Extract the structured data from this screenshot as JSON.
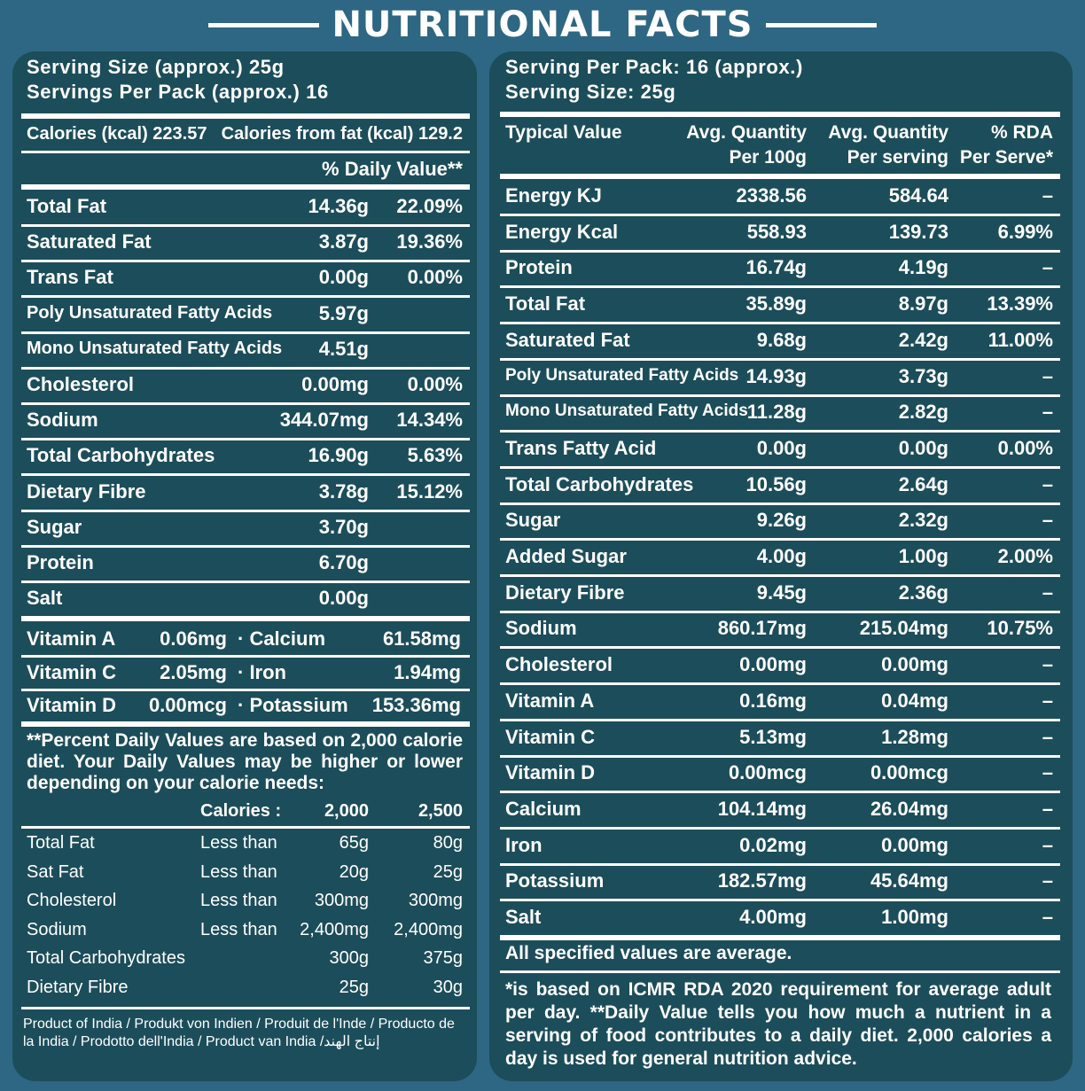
{
  "title": "NUTRITIONAL FACTS",
  "left": {
    "serving_size": "Serving Size (approx.) 25g",
    "servings_per_pack": "Servings Per Pack (approx.)",
    "servings_per_pack_value": "16",
    "calories": "Calories (kcal) 223.57",
    "calories_fat": "Calories from fat (kcal) 129.2",
    "daily_value_header": "% Daily Value**",
    "nutrients": [
      {
        "name": "Total Fat",
        "amount": "14.36g",
        "dv": "22.09%"
      },
      {
        "name": "Saturated Fat",
        "amount": "3.87g",
        "dv": "19.36%"
      },
      {
        "name": "Trans Fat",
        "amount": "0.00g",
        "dv": "0.00%"
      },
      {
        "name": "Poly Unsaturated Fatty Acids",
        "amount": "5.97g",
        "dv": ""
      },
      {
        "name": "Mono Unsaturated Fatty Acids",
        "amount": "4.51g",
        "dv": ""
      },
      {
        "name": "Cholesterol",
        "amount": "0.00mg",
        "dv": "0.00%"
      },
      {
        "name": "Sodium",
        "amount": "344.07mg",
        "dv": "14.34%"
      },
      {
        "name": "Total Carbohydrates",
        "amount": "16.90g",
        "dv": "5.63%"
      },
      {
        "name": "Dietary Fibre",
        "amount": "3.78g",
        "dv": "15.12%"
      },
      {
        "name": "Sugar",
        "amount": "3.70g",
        "dv": ""
      },
      {
        "name": "Protein",
        "amount": "6.70g",
        "dv": ""
      },
      {
        "name": "Salt",
        "amount": "0.00g",
        "dv": ""
      }
    ],
    "vitamins": [
      {
        "name": "Vitamin A",
        "amount": "0.06mg",
        "mineral": "· Calcium",
        "mineral_amount": "61.58mg"
      },
      {
        "name": "Vitamin C",
        "amount": "2.05mg",
        "mineral": "· Iron",
        "mineral_amount": "1.94mg"
      },
      {
        "name": "Vitamin D",
        "amount": "0.00mcg",
        "mineral": "· Potassium",
        "mineral_amount": "153.36mg"
      }
    ],
    "dv_note": "**Percent Daily Values are based on 2,000 calorie diet. Your Daily Values may be higher or lower depending on your calorie needs:",
    "ref_header": {
      "label": "Calories :",
      "c1": "2,000",
      "c2": "2,500"
    },
    "ref_rows": [
      {
        "name": "Total Fat",
        "qual": "Less than",
        "c1": "65g",
        "c2": "80g"
      },
      {
        "name": "Sat Fat",
        "qual": "Less than",
        "c1": "20g",
        "c2": "25g"
      },
      {
        "name": "Cholesterol",
        "qual": "Less than",
        "c1": "300mg",
        "c2": "300mg"
      },
      {
        "name": "Sodium",
        "qual": "Less than",
        "c1": "2,400mg",
        "c2": "2,400mg"
      },
      {
        "name": "Total Carbohydrates",
        "qual": "",
        "c1": "300g",
        "c2": "375g"
      },
      {
        "name": "Dietary Fibre",
        "qual": "",
        "c1": "25g",
        "c2": "30g"
      }
    ],
    "origin": "Product of India / Produkt von Indien / Produit de l'Inde / Producto de la India / Prodotto dell'India / Product van India /إنتاج الهند"
  },
  "right": {
    "serving_per_pack": "Serving Per Pack: 16 (approx.)",
    "serving_size": "Serving Size: 25g",
    "columns": {
      "typical": "Typical Value",
      "per100_1": "Avg. Quantity",
      "per100_2": "Per 100g",
      "perserv_1": "Avg. Quantity",
      "perserv_2": "Per serving",
      "rda_1": "% RDA",
      "rda_2": "Per Serve*"
    },
    "rows": [
      {
        "name": "Energy KJ",
        "per100": "2338.56",
        "perserv": "584.64",
        "rda": "–"
      },
      {
        "name": "Energy Kcal",
        "per100": "558.93",
        "perserv": "139.73",
        "rda": "6.99%"
      },
      {
        "name": "Protein",
        "per100": "16.74g",
        "perserv": "4.19g",
        "rda": "–"
      },
      {
        "name": "Total Fat",
        "per100": "35.89g",
        "perserv": "8.97g",
        "rda": "13.39%"
      },
      {
        "name": "Saturated Fat",
        "per100": "9.68g",
        "perserv": "2.42g",
        "rda": "11.00%"
      },
      {
        "name": "Poly Unsaturated Fatty Acids",
        "per100": "14.93g",
        "perserv": "3.73g",
        "rda": "–"
      },
      {
        "name": "Mono Unsaturated Fatty Acids",
        "per100": "11.28g",
        "perserv": "2.82g",
        "rda": "–"
      },
      {
        "name": "Trans Fatty Acid",
        "per100": "0.00g",
        "perserv": "0.00g",
        "rda": "0.00%"
      },
      {
        "name": "Total Carbohydrates",
        "per100": "10.56g",
        "perserv": "2.64g",
        "rda": "–"
      },
      {
        "name": "Sugar",
        "per100": "9.26g",
        "perserv": "2.32g",
        "rda": "–"
      },
      {
        "name": "Added Sugar",
        "per100": "4.00g",
        "perserv": "1.00g",
        "rda": "2.00%"
      },
      {
        "name": "Dietary Fibre",
        "per100": "9.45g",
        "perserv": "2.36g",
        "rda": "–"
      },
      {
        "name": "Sodium",
        "per100": "860.17mg",
        "perserv": "215.04mg",
        "rda": "10.75%"
      },
      {
        "name": "Cholesterol",
        "per100": "0.00mg",
        "perserv": "0.00mg",
        "rda": "–"
      },
      {
        "name": "Vitamin A",
        "per100": "0.16mg",
        "perserv": "0.04mg",
        "rda": "–"
      },
      {
        "name": "Vitamin C",
        "per100": "5.13mg",
        "perserv": "1.28mg",
        "rda": "–"
      },
      {
        "name": "Vitamin D",
        "per100": "0.00mcg",
        "perserv": "0.00mcg",
        "rda": "–"
      },
      {
        "name": "Calcium",
        "per100": "104.14mg",
        "perserv": "26.04mg",
        "rda": "–"
      },
      {
        "name": "Iron",
        "per100": "0.02mg",
        "perserv": "0.00mg",
        "rda": "–"
      },
      {
        "name": "Potassium",
        "per100": "182.57mg",
        "perserv": "45.64mg",
        "rda": "–"
      },
      {
        "name": "Salt",
        "per100": "4.00mg",
        "perserv": "1.00mg",
        "rda": "–"
      }
    ],
    "average_note": "All specified values are average.",
    "rda_note": "*is based on ICMR RDA 2020 requirement for average adult per day. **Daily Value tells you how much a nutrient in a serving of food contributes to a daily diet. 2,000 calories a day is used for general nutrition advice."
  }
}
